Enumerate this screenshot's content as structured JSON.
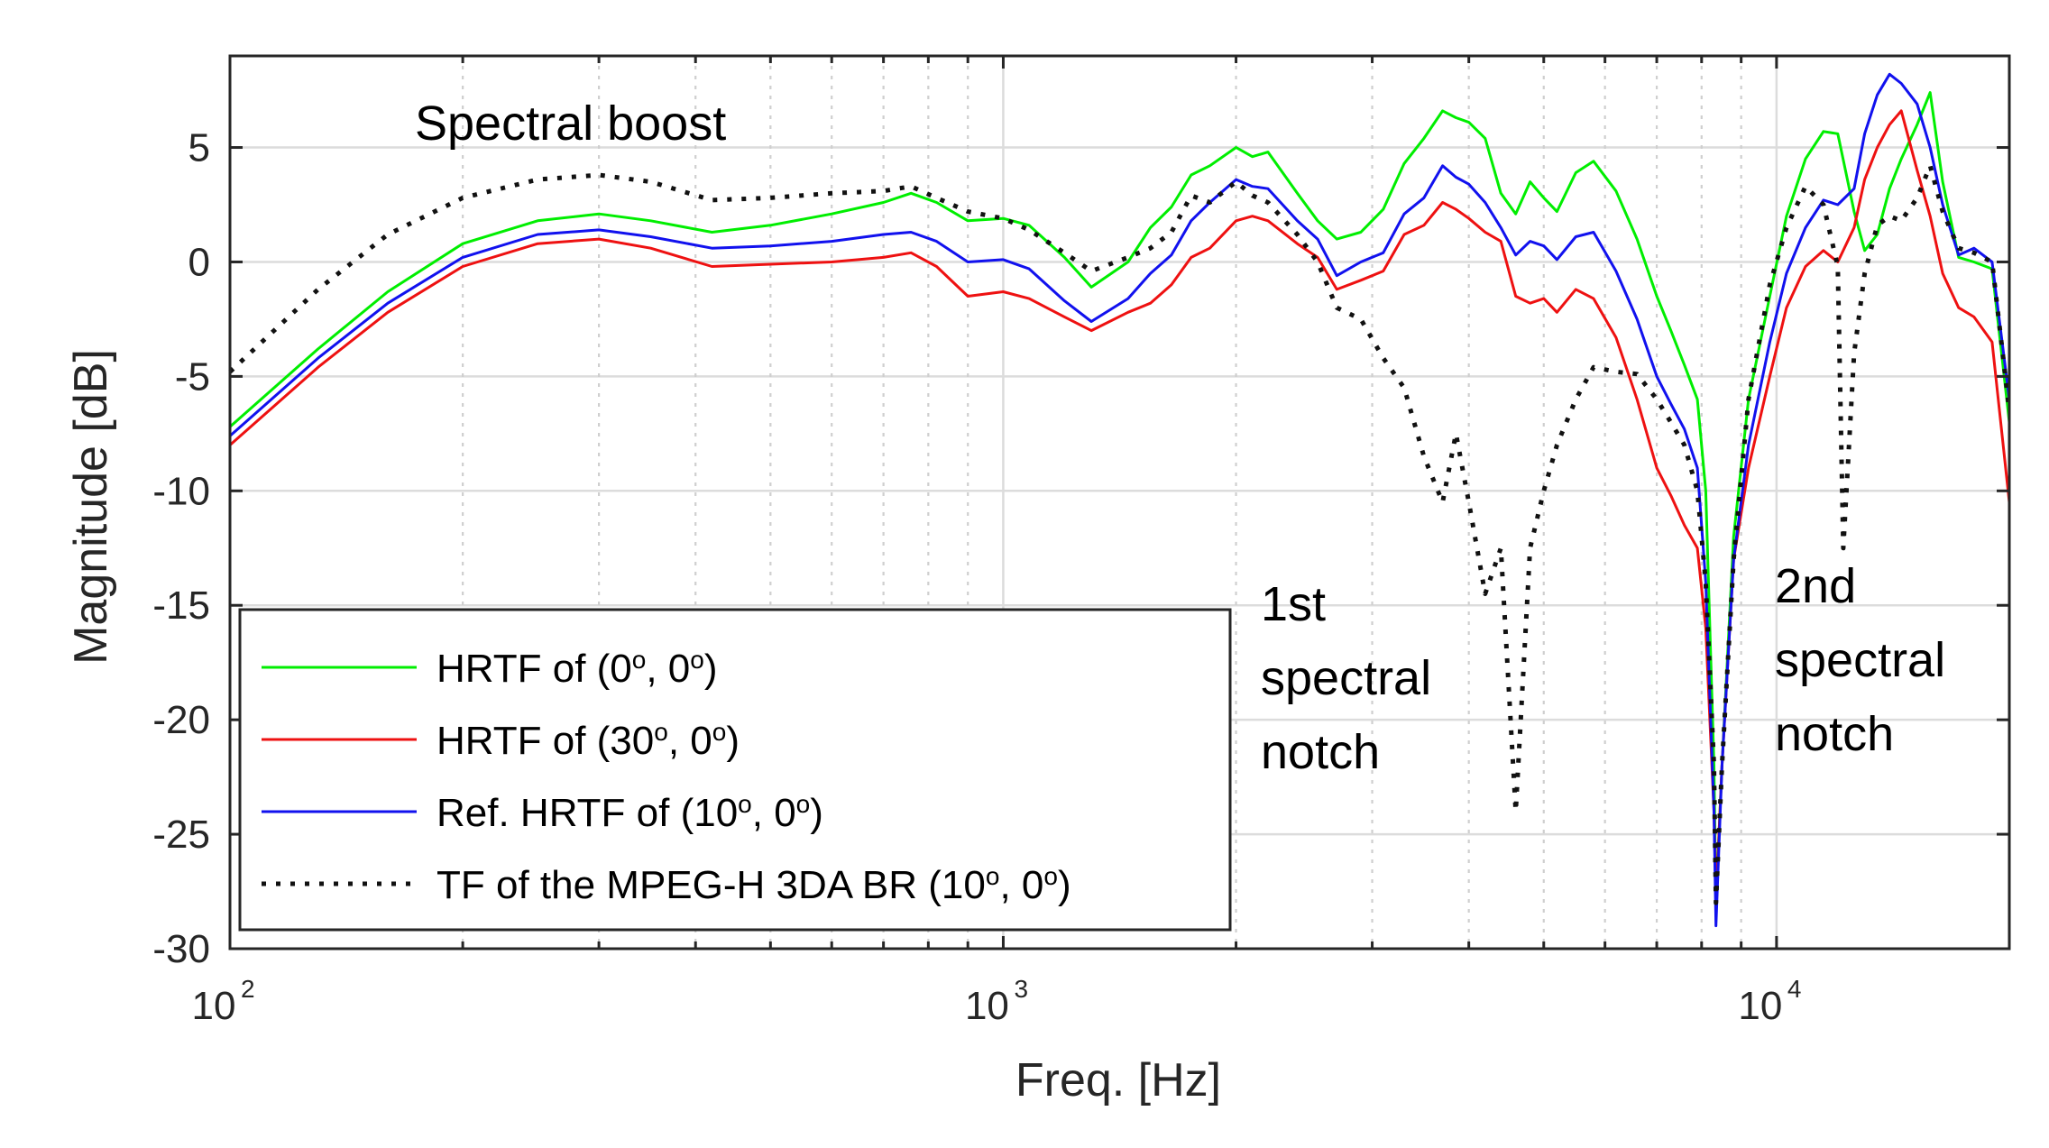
{
  "chart_data": {
    "type": "line",
    "xscale": "log",
    "xlabel": "Freq. [Hz]",
    "ylabel": "Magnitude [dB]",
    "xlim": [
      100,
      20000
    ],
    "ylim": [
      -30,
      9
    ],
    "grid": true,
    "legend_position": "bottom-left",
    "x_ticks": [
      {
        "value": 100,
        "base": "10",
        "exp": "2"
      },
      {
        "value": 1000,
        "base": "10",
        "exp": "3"
      },
      {
        "value": 10000,
        "base": "10",
        "exp": "4"
      }
    ],
    "y_ticks": [
      {
        "value": 5,
        "label": "5"
      },
      {
        "value": 0,
        "label": "0"
      },
      {
        "value": -5,
        "label": "-5"
      },
      {
        "value": -10,
        "label": "-10"
      },
      {
        "value": -15,
        "label": "-15"
      },
      {
        "value": -20,
        "label": "-20"
      },
      {
        "value": -25,
        "label": "-25"
      },
      {
        "value": -30,
        "label": "-30"
      }
    ],
    "annotations": {
      "boost": "Spectral boost",
      "notch1": [
        "1st",
        "spectral",
        "notch"
      ],
      "notch2": [
        "2nd",
        "spectral",
        "notch"
      ]
    },
    "series": [
      {
        "name": "HRTF of (0°, 0°)",
        "legend": {
          "pre": "HRTF of (0",
          "mid": ", 0",
          "post": ")",
          "sup1": "o",
          "sup2": "o"
        },
        "color": "#00ee00",
        "style": "solid",
        "points": [
          [
            100,
            -7.2
          ],
          [
            130,
            -3.8
          ],
          [
            160,
            -1.3
          ],
          [
            200,
            0.8
          ],
          [
            250,
            1.8
          ],
          [
            300,
            2.1
          ],
          [
            350,
            1.8
          ],
          [
            420,
            1.3
          ],
          [
            500,
            1.6
          ],
          [
            600,
            2.1
          ],
          [
            700,
            2.6
          ],
          [
            760,
            3
          ],
          [
            820,
            2.6
          ],
          [
            900,
            1.8
          ],
          [
            1000,
            1.9
          ],
          [
            1080,
            1.6
          ],
          [
            1200,
            0.2
          ],
          [
            1300,
            -1.1
          ],
          [
            1450,
            0
          ],
          [
            1550,
            1.5
          ],
          [
            1650,
            2.4
          ],
          [
            1750,
            3.8
          ],
          [
            1850,
            4.2
          ],
          [
            2000,
            5
          ],
          [
            2100,
            4.6
          ],
          [
            2200,
            4.8
          ],
          [
            2400,
            3
          ],
          [
            2550,
            1.8
          ],
          [
            2700,
            1
          ],
          [
            2900,
            1.3
          ],
          [
            3100,
            2.3
          ],
          [
            3300,
            4.3
          ],
          [
            3500,
            5.4
          ],
          [
            3700,
            6.6
          ],
          [
            3850,
            6.3
          ],
          [
            4000,
            6.1
          ],
          [
            4200,
            5.4
          ],
          [
            4400,
            3
          ],
          [
            4600,
            2.1
          ],
          [
            4800,
            3.5
          ],
          [
            5000,
            2.8
          ],
          [
            5200,
            2.2
          ],
          [
            5500,
            3.9
          ],
          [
            5800,
            4.4
          ],
          [
            6200,
            3.1
          ],
          [
            6600,
            1
          ],
          [
            7000,
            -1.5
          ],
          [
            7300,
            -3
          ],
          [
            7600,
            -4.5
          ],
          [
            7900,
            -6
          ],
          [
            8100,
            -10
          ],
          [
            8300,
            -22
          ],
          [
            8350,
            -28
          ],
          [
            8500,
            -22
          ],
          [
            8800,
            -12
          ],
          [
            9200,
            -6
          ],
          [
            9800,
            -1.5
          ],
          [
            10300,
            2
          ],
          [
            10900,
            4.5
          ],
          [
            11500,
            5.7
          ],
          [
            12000,
            5.6
          ],
          [
            12600,
            2.2
          ],
          [
            13000,
            0.5
          ],
          [
            13500,
            1.2
          ],
          [
            14000,
            3.2
          ],
          [
            14500,
            4.5
          ],
          [
            15200,
            6
          ],
          [
            15800,
            7.4
          ],
          [
            16400,
            3.5
          ],
          [
            17200,
            0.2
          ],
          [
            18000,
            0
          ],
          [
            19000,
            -0.3
          ],
          [
            20000,
            -7
          ]
        ]
      },
      {
        "name": "HRTF of (30°, 0°)",
        "legend": {
          "pre": "HRTF of (30",
          "mid": ", 0",
          "post": ")",
          "sup1": "o",
          "sup2": "o"
        },
        "color": "#ee1111",
        "style": "solid",
        "points": [
          [
            100,
            -8
          ],
          [
            130,
            -4.6
          ],
          [
            160,
            -2.2
          ],
          [
            200,
            -0.2
          ],
          [
            250,
            0.8
          ],
          [
            300,
            1
          ],
          [
            350,
            0.6
          ],
          [
            420,
            -0.2
          ],
          [
            500,
            -0.1
          ],
          [
            600,
            0
          ],
          [
            700,
            0.2
          ],
          [
            760,
            0.4
          ],
          [
            820,
            -0.2
          ],
          [
            900,
            -1.5
          ],
          [
            1000,
            -1.3
          ],
          [
            1080,
            -1.6
          ],
          [
            1200,
            -2.4
          ],
          [
            1300,
            -3
          ],
          [
            1450,
            -2.2
          ],
          [
            1550,
            -1.8
          ],
          [
            1650,
            -1
          ],
          [
            1750,
            0.2
          ],
          [
            1850,
            0.6
          ],
          [
            2000,
            1.8
          ],
          [
            2100,
            2
          ],
          [
            2200,
            1.8
          ],
          [
            2400,
            0.8
          ],
          [
            2550,
            0.2
          ],
          [
            2700,
            -1.2
          ],
          [
            2900,
            -0.8
          ],
          [
            3100,
            -0.4
          ],
          [
            3300,
            1.2
          ],
          [
            3500,
            1.6
          ],
          [
            3700,
            2.6
          ],
          [
            3850,
            2.3
          ],
          [
            4000,
            1.9
          ],
          [
            4200,
            1.3
          ],
          [
            4400,
            0.9
          ],
          [
            4600,
            -1.5
          ],
          [
            4800,
            -1.8
          ],
          [
            5000,
            -1.6
          ],
          [
            5200,
            -2.2
          ],
          [
            5500,
            -1.2
          ],
          [
            5800,
            -1.6
          ],
          [
            6200,
            -3.3
          ],
          [
            6600,
            -6
          ],
          [
            7000,
            -9
          ],
          [
            7300,
            -10.2
          ],
          [
            7600,
            -11.5
          ],
          [
            7900,
            -12.5
          ],
          [
            8100,
            -16
          ],
          [
            8300,
            -24
          ],
          [
            8350,
            -28
          ],
          [
            8500,
            -22
          ],
          [
            8800,
            -13
          ],
          [
            9200,
            -9
          ],
          [
            9800,
            -5
          ],
          [
            10300,
            -2
          ],
          [
            10900,
            -0.2
          ],
          [
            11500,
            0.5
          ],
          [
            12000,
            0
          ],
          [
            12600,
            1.5
          ],
          [
            13000,
            3.6
          ],
          [
            13500,
            5
          ],
          [
            14000,
            6
          ],
          [
            14500,
            6.6
          ],
          [
            15200,
            4
          ],
          [
            15800,
            2
          ],
          [
            16400,
            -0.5
          ],
          [
            17200,
            -2
          ],
          [
            18000,
            -2.4
          ],
          [
            19000,
            -3.5
          ],
          [
            20000,
            -10.5
          ]
        ]
      },
      {
        "name": "Ref. HRTF of (10°, 0°)",
        "legend": {
          "pre": "Ref. HRTF of (10",
          "mid": ", 0",
          "post": ")",
          "sup1": "o",
          "sup2": "o"
        },
        "color": "#1111ee",
        "style": "solid",
        "points": [
          [
            100,
            -7.6
          ],
          [
            130,
            -4.2
          ],
          [
            160,
            -1.8
          ],
          [
            200,
            0.2
          ],
          [
            250,
            1.2
          ],
          [
            300,
            1.4
          ],
          [
            350,
            1.1
          ],
          [
            420,
            0.6
          ],
          [
            500,
            0.7
          ],
          [
            600,
            0.9
          ],
          [
            700,
            1.2
          ],
          [
            760,
            1.3
          ],
          [
            820,
            0.9
          ],
          [
            900,
            0
          ],
          [
            1000,
            0.1
          ],
          [
            1080,
            -0.3
          ],
          [
            1200,
            -1.7
          ],
          [
            1300,
            -2.6
          ],
          [
            1450,
            -1.6
          ],
          [
            1550,
            -0.5
          ],
          [
            1650,
            0.3
          ],
          [
            1750,
            1.8
          ],
          [
            1850,
            2.6
          ],
          [
            2000,
            3.6
          ],
          [
            2100,
            3.3
          ],
          [
            2200,
            3.2
          ],
          [
            2400,
            1.8
          ],
          [
            2550,
            1
          ],
          [
            2700,
            -0.6
          ],
          [
            2900,
            0
          ],
          [
            3100,
            0.4
          ],
          [
            3300,
            2.1
          ],
          [
            3500,
            2.8
          ],
          [
            3700,
            4.2
          ],
          [
            3850,
            3.7
          ],
          [
            4000,
            3.4
          ],
          [
            4200,
            2.6
          ],
          [
            4400,
            1.5
          ],
          [
            4600,
            0.3
          ],
          [
            4800,
            0.9
          ],
          [
            5000,
            0.7
          ],
          [
            5200,
            0.1
          ],
          [
            5500,
            1.1
          ],
          [
            5800,
            1.3
          ],
          [
            6200,
            -0.4
          ],
          [
            6600,
            -2.5
          ],
          [
            7000,
            -5
          ],
          [
            7300,
            -6.2
          ],
          [
            7600,
            -7.3
          ],
          [
            7900,
            -9
          ],
          [
            8100,
            -14
          ],
          [
            8300,
            -24
          ],
          [
            8350,
            -29
          ],
          [
            8500,
            -22
          ],
          [
            8800,
            -13
          ],
          [
            9200,
            -8
          ],
          [
            9800,
            -3.5
          ],
          [
            10300,
            -0.5
          ],
          [
            10900,
            1.5
          ],
          [
            11500,
            2.7
          ],
          [
            12000,
            2.5
          ],
          [
            12600,
            3.2
          ],
          [
            13000,
            5.6
          ],
          [
            13500,
            7.3
          ],
          [
            14000,
            8.2
          ],
          [
            14500,
            7.8
          ],
          [
            15200,
            6.9
          ],
          [
            15800,
            5
          ],
          [
            16400,
            2.5
          ],
          [
            17200,
            0.3
          ],
          [
            18000,
            0.6
          ],
          [
            19000,
            0
          ],
          [
            20000,
            -6
          ]
        ]
      },
      {
        "name": "TF of the MPEG-H 3DA BR (10°, 0°)",
        "legend": {
          "pre": "TF of the MPEG-H 3DA BR (10",
          "mid": ", 0",
          "post": ")",
          "sup1": "o",
          "sup2": "o"
        },
        "color": "#111111",
        "style": "dotted",
        "points": [
          [
            100,
            -4.8
          ],
          [
            130,
            -1.2
          ],
          [
            160,
            1.2
          ],
          [
            200,
            2.8
          ],
          [
            250,
            3.6
          ],
          [
            300,
            3.8
          ],
          [
            350,
            3.5
          ],
          [
            420,
            2.7
          ],
          [
            500,
            2.8
          ],
          [
            600,
            3
          ],
          [
            700,
            3.1
          ],
          [
            760,
            3.3
          ],
          [
            820,
            2.8
          ],
          [
            900,
            2.2
          ],
          [
            1000,
            1.9
          ],
          [
            1080,
            1.4
          ],
          [
            1200,
            0.4
          ],
          [
            1300,
            -0.4
          ],
          [
            1450,
            0.2
          ],
          [
            1550,
            0.6
          ],
          [
            1650,
            1.3
          ],
          [
            1750,
            2.9
          ],
          [
            1850,
            2.6
          ],
          [
            2000,
            3.5
          ],
          [
            2100,
            2.9
          ],
          [
            2200,
            2.6
          ],
          [
            2400,
            1.2
          ],
          [
            2550,
            0
          ],
          [
            2700,
            -2
          ],
          [
            2900,
            -2.5
          ],
          [
            3100,
            -4.2
          ],
          [
            3300,
            -5.5
          ],
          [
            3500,
            -8.5
          ],
          [
            3700,
            -10.5
          ],
          [
            3850,
            -7.5
          ],
          [
            4000,
            -10.5
          ],
          [
            4200,
            -14.5
          ],
          [
            4400,
            -12.5
          ],
          [
            4600,
            -24
          ],
          [
            4800,
            -12.5
          ],
          [
            5000,
            -10
          ],
          [
            5200,
            -8
          ],
          [
            5500,
            -6
          ],
          [
            5800,
            -4.6
          ],
          [
            6200,
            -4.8
          ],
          [
            6600,
            -4.9
          ],
          [
            7000,
            -6
          ],
          [
            7300,
            -7
          ],
          [
            7600,
            -8
          ],
          [
            7900,
            -10
          ],
          [
            8100,
            -14
          ],
          [
            8300,
            -22
          ],
          [
            8350,
            -28
          ],
          [
            8500,
            -22
          ],
          [
            8800,
            -13
          ],
          [
            9200,
            -6
          ],
          [
            9800,
            -1
          ],
          [
            10300,
            1.5
          ],
          [
            10900,
            3.3
          ],
          [
            11500,
            2.5
          ],
          [
            12000,
            -0.2
          ],
          [
            12200,
            -12.5
          ],
          [
            12600,
            -4
          ],
          [
            13000,
            -0.5
          ],
          [
            13500,
            1.6
          ],
          [
            14000,
            2
          ],
          [
            14500,
            1.8
          ],
          [
            15200,
            2.8
          ],
          [
            15800,
            4.2
          ],
          [
            16400,
            2.2
          ],
          [
            17200,
            0.6
          ],
          [
            18000,
            0.4
          ],
          [
            19000,
            0
          ],
          [
            20000,
            -6.5
          ]
        ]
      }
    ]
  }
}
